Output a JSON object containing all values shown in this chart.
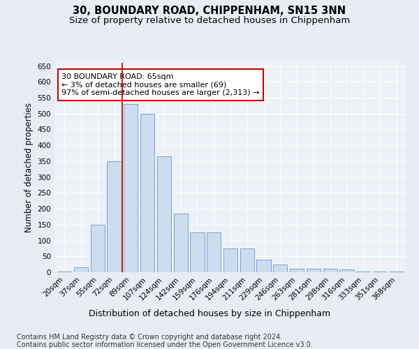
{
  "title": "30, BOUNDARY ROAD, CHIPPENHAM, SN15 3NN",
  "subtitle": "Size of property relative to detached houses in Chippenham",
  "xlabel": "Distribution of detached houses by size in Chippenham",
  "ylabel": "Number of detached properties",
  "categories": [
    "20sqm",
    "37sqm",
    "55sqm",
    "72sqm",
    "89sqm",
    "107sqm",
    "124sqm",
    "142sqm",
    "159sqm",
    "176sqm",
    "194sqm",
    "211sqm",
    "229sqm",
    "246sqm",
    "263sqm",
    "281sqm",
    "298sqm",
    "316sqm",
    "333sqm",
    "351sqm",
    "368sqm"
  ],
  "values": [
    2,
    15,
    150,
    350,
    530,
    500,
    365,
    185,
    125,
    125,
    75,
    75,
    40,
    25,
    12,
    12,
    10,
    8,
    2,
    2,
    2
  ],
  "bar_color": "#ccddf0",
  "bar_edge_color": "#6699cc",
  "red_line_x": 3.5,
  "annotation_text": "30 BOUNDARY ROAD: 65sqm\n← 3% of detached houses are smaller (69)\n97% of semi-detached houses are larger (2,313) →",
  "annotation_box_facecolor": "#ffffff",
  "annotation_box_edgecolor": "#cc0000",
  "ylim": [
    0,
    660
  ],
  "yticks": [
    0,
    50,
    100,
    150,
    200,
    250,
    300,
    350,
    400,
    450,
    500,
    550,
    600,
    650
  ],
  "background_color": "#e8edf5",
  "plot_bg_color": "#edf1f8",
  "grid_color": "#ffffff",
  "footer1": "Contains HM Land Registry data © Crown copyright and database right 2024.",
  "footer2": "Contains public sector information licensed under the Open Government Licence v3.0.",
  "title_fontsize": 10.5,
  "subtitle_fontsize": 9.5,
  "xlabel_fontsize": 9,
  "ylabel_fontsize": 8.5,
  "tick_fontsize": 7.5,
  "annotation_fontsize": 8,
  "footer_fontsize": 7
}
